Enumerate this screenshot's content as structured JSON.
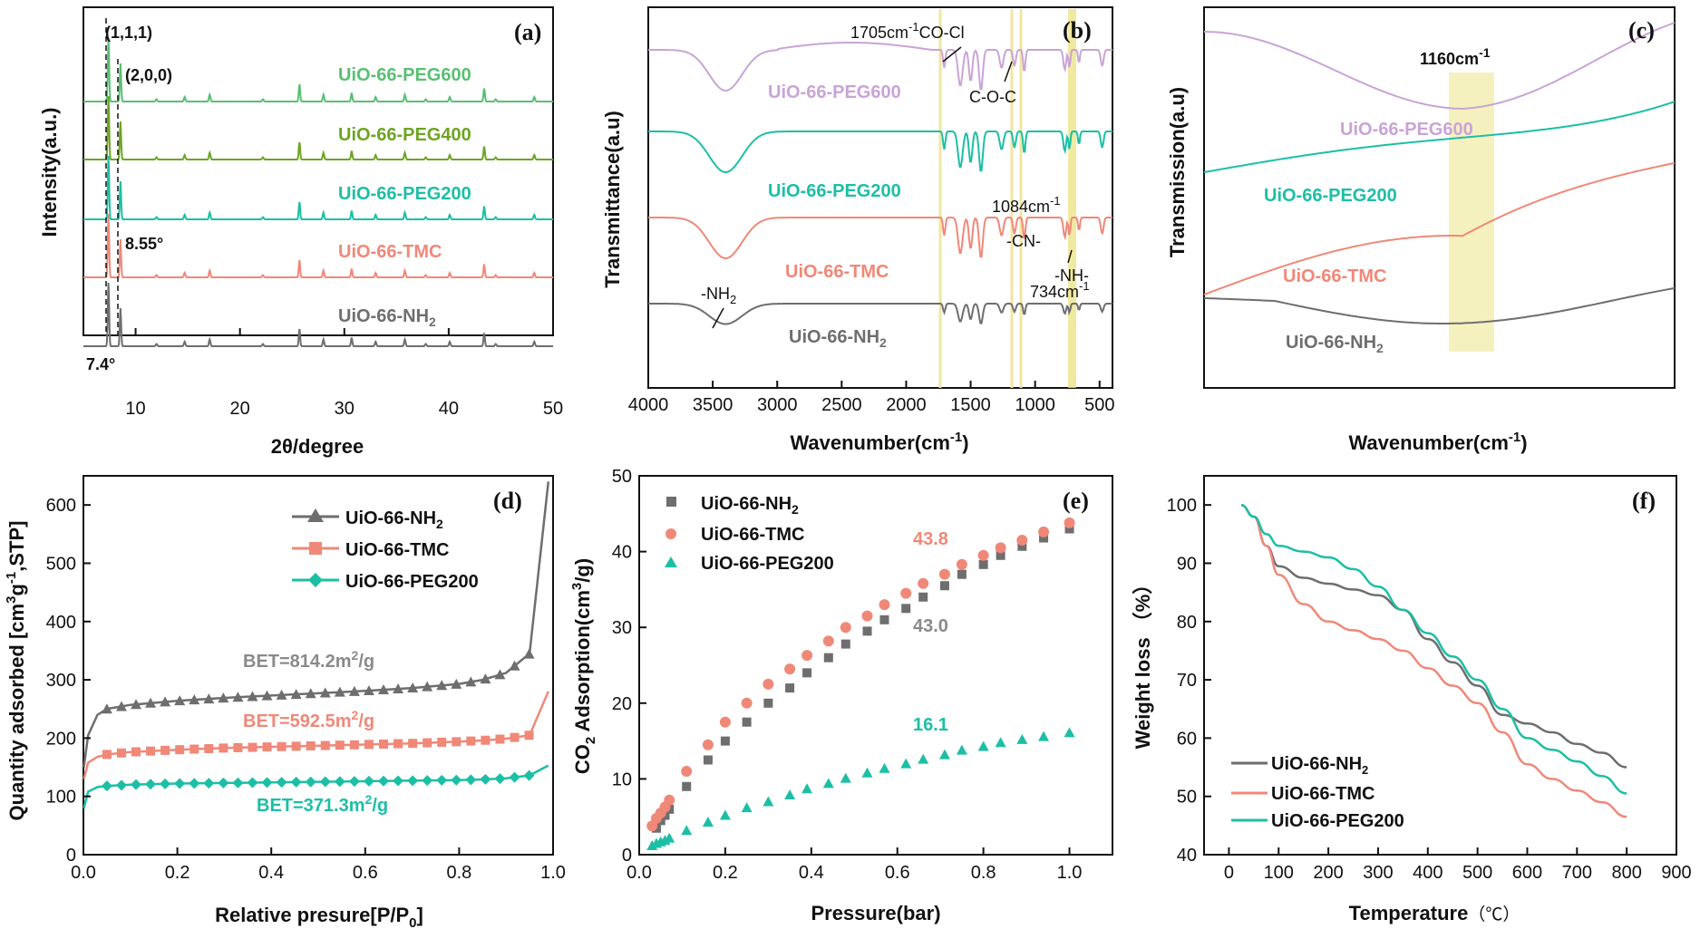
{
  "colors": {
    "gray": "#6e6e6e",
    "salmon": "#f08878",
    "teal": "#1cbfa5",
    "lavender": "#c9a4d6",
    "green_light": "#59bf73",
    "green_dark": "#6da522",
    "highlight": "#ece58a"
  },
  "panels": {
    "a": {
      "letter": "(a)",
      "xlabel": "2θ/degree",
      "ylabel": "Intensity(a.u.)",
      "xticks": [
        "10",
        "20",
        "30",
        "40",
        "50"
      ],
      "peaks_labels": {
        "p111": "(1,1,1)",
        "p200": "(2,0,0)",
        "angle1": "8.55°",
        "angle2": "7.4°"
      },
      "series": [
        "UiO-66-PEG600",
        "UiO-66-PEG400",
        "UiO-66-PEG200",
        "UiO-66-TMC",
        "UiO-66-NH",
        "2"
      ]
    },
    "b": {
      "letter": "(b)",
      "xlabel": "Wavenumber(cm",
      "xlabel_sup": "-1",
      "xlabel_end": ")",
      "ylabel": "Transmittance(a.u)",
      "xticks": [
        "4000",
        "3500",
        "3000",
        "2500",
        "2000",
        "1500",
        "1000",
        "500"
      ],
      "annotations": {
        "a1": "1705cm",
        "a1sup": "-1",
        "a1b": "CO-Cl",
        "a2": "C-O-C",
        "a3": "1084cm",
        "a3sup": "-1",
        "a4": "-CN-",
        "a5": "-NH-",
        "a6": "734cm",
        "a6sup": "-1",
        "a7": "-NH",
        "a7sub": "2"
      },
      "series": [
        "UiO-66-PEG600",
        "UiO-66-PEG200",
        "UiO-66-TMC",
        "UiO-66-NH",
        "2"
      ]
    },
    "c": {
      "letter": "(c)",
      "xlabel": "Wavenumber(cm",
      "xlabel_sup": "-1",
      "xlabel_end": ")",
      "ylabel": "Transmission(a.u)",
      "annotation": "1160cm",
      "annotation_sup": "-1",
      "series": [
        "UiO-66-PEG600",
        "UiO-66-PEG200",
        "UiO-66-TMC",
        "UiO-66-NH",
        "2"
      ]
    },
    "d": {
      "letter": "(d)",
      "xlabel": "Relative presure[P/P",
      "xlabel_sub": "0",
      "xlabel_end": "]",
      "ylabel": "Quantity adsorbed [cm",
      "ylabel_sup1": "3",
      "ylabel_mid": "g",
      "ylabel_sup2": "-1",
      "ylabel_end": ",STP]",
      "xticks": [
        "0.0",
        "0.2",
        "0.4",
        "0.6",
        "0.8",
        "1.0"
      ],
      "yticks": [
        "0",
        "100",
        "200",
        "300",
        "400",
        "500",
        "600"
      ],
      "legend": [
        "UiO-66-NH",
        "2",
        "UiO-66-TMC",
        "UiO-66-PEG200"
      ],
      "bet": [
        "BET=814.2m",
        "2",
        "/g",
        "BET=592.5m",
        "2",
        "/g",
        "BET=371.3m",
        "2",
        "/g"
      ]
    },
    "e": {
      "letter": "(e)",
      "xlabel": "Pressure(bar)",
      "ylabel_a": "CO",
      "ylabel_sub": "2",
      "ylabel_b": " Adsorption(cm",
      "ylabel_sup": "3",
      "ylabel_c": "/g)",
      "xticks": [
        "0.0",
        "0.2",
        "0.4",
        "0.6",
        "0.8",
        "1.0"
      ],
      "yticks": [
        "0",
        "10",
        "20",
        "30",
        "40",
        "50"
      ],
      "legend": [
        "UiO-66-NH",
        "2",
        "UiO-66-TMC",
        "UiO-66-PEG200"
      ],
      "values": [
        "43.8",
        "43.0",
        "16.1"
      ]
    },
    "f": {
      "letter": "(f)",
      "xlabel": "Temperature",
      "xlabel_unit": "（℃）",
      "ylabel": "Weight loss （%）",
      "xticks": [
        "0",
        "100",
        "200",
        "300",
        "400",
        "500",
        "600",
        "700",
        "800",
        "900"
      ],
      "yticks": [
        "40",
        "50",
        "60",
        "70",
        "80",
        "90",
        "100"
      ],
      "legend": [
        "UiO-66-NH",
        "2",
        "UiO-66-TMC",
        "UiO-66-PEG200"
      ]
    }
  },
  "chart_data": [
    {
      "panel": "a",
      "type": "line",
      "xlim": [
        5,
        50
      ],
      "series": [
        {
          "name": "UiO-66-PEG600",
          "peaks": [
            [
              7.4,
              1.0
            ],
            [
              8.55,
              0.6
            ],
            [
              25.7,
              0.2
            ],
            [
              30.7,
              0.1
            ],
            [
              43.4,
              0.1
            ]
          ]
        },
        {
          "name": "UiO-66-PEG400",
          "peaks": [
            [
              7.4,
              1.0
            ],
            [
              8.55,
              0.6
            ],
            [
              25.7,
              0.2
            ],
            [
              30.7,
              0.1
            ],
            [
              43.4,
              0.1
            ]
          ]
        },
        {
          "name": "UiO-66-PEG200",
          "peaks": [
            [
              7.4,
              1.0
            ],
            [
              8.55,
              0.6
            ],
            [
              25.7,
              0.2
            ],
            [
              30.7,
              0.1
            ],
            [
              43.4,
              0.1
            ]
          ]
        },
        {
          "name": "UiO-66-TMC",
          "peaks": [
            [
              7.4,
              1.0
            ],
            [
              8.55,
              0.6
            ],
            [
              25.7,
              0.2
            ],
            [
              30.7,
              0.1
            ],
            [
              43.4,
              0.1
            ]
          ]
        },
        {
          "name": "UiO-66-NH2",
          "peaks": [
            [
              7.4,
              1.0
            ],
            [
              8.55,
              0.6
            ],
            [
              25.7,
              0.2
            ],
            [
              30.7,
              0.1
            ],
            [
              43.4,
              0.1
            ]
          ]
        }
      ]
    },
    {
      "panel": "b",
      "type": "line",
      "xlim": [
        4000,
        400
      ]
    },
    {
      "panel": "c",
      "type": "line"
    },
    {
      "panel": "d",
      "type": "line",
      "xlim": [
        0,
        1
      ],
      "ylim": [
        0,
        650
      ],
      "series": [
        {
          "name": "UiO-66-NH2",
          "x": [
            0.001,
            0.01,
            0.03,
            0.05,
            0.1,
            0.2,
            0.3,
            0.4,
            0.5,
            0.6,
            0.7,
            0.8,
            0.85,
            0.9,
            0.95,
            0.99
          ],
          "y": [
            150,
            205,
            240,
            250,
            257,
            264,
            269,
            273,
            277,
            281,
            286,
            293,
            300,
            312,
            345,
            640
          ]
        },
        {
          "name": "UiO-66-TMC",
          "x": [
            0.001,
            0.01,
            0.03,
            0.05,
            0.1,
            0.2,
            0.3,
            0.4,
            0.5,
            0.6,
            0.7,
            0.8,
            0.85,
            0.9,
            0.95,
            0.99
          ],
          "y": [
            130,
            158,
            168,
            172,
            176,
            180,
            183,
            185,
            187,
            189,
            191,
            194,
            196,
            199,
            205,
            280
          ]
        },
        {
          "name": "UiO-66-PEG200",
          "x": [
            0.001,
            0.01,
            0.03,
            0.05,
            0.1,
            0.2,
            0.3,
            0.4,
            0.5,
            0.6,
            0.7,
            0.8,
            0.85,
            0.9,
            0.95,
            0.99
          ],
          "y": [
            80,
            108,
            116,
            118,
            120,
            122,
            123,
            124,
            125,
            126,
            127,
            128,
            129,
            131,
            136,
            153
          ]
        }
      ]
    },
    {
      "panel": "e",
      "type": "scatter",
      "xlim": [
        0,
        1.1
      ],
      "ylim": [
        0,
        50
      ],
      "series": [
        {
          "name": "UiO-66-NH2",
          "x": [
            0.04,
            0.05,
            0.06,
            0.07,
            0.11,
            0.16,
            0.2,
            0.25,
            0.3,
            0.35,
            0.39,
            0.44,
            0.48,
            0.53,
            0.57,
            0.62,
            0.66,
            0.71,
            0.75,
            0.8,
            0.84,
            0.89,
            0.94,
            1.0
          ],
          "y": [
            3.5,
            4.5,
            5.2,
            6.0,
            9.0,
            12.5,
            15.0,
            17.5,
            20.0,
            22.0,
            24.0,
            26.0,
            27.8,
            29.5,
            31.0,
            32.5,
            34.0,
            35.5,
            37.0,
            38.3,
            39.5,
            40.7,
            41.8,
            43.0
          ]
        },
        {
          "name": "UiO-66-TMC",
          "x": [
            0.03,
            0.04,
            0.05,
            0.06,
            0.07,
            0.11,
            0.16,
            0.2,
            0.25,
            0.3,
            0.35,
            0.39,
            0.44,
            0.48,
            0.53,
            0.57,
            0.62,
            0.66,
            0.71,
            0.75,
            0.8,
            0.84,
            0.89,
            0.94,
            1.0
          ],
          "y": [
            3.8,
            4.8,
            5.5,
            6.3,
            7.2,
            11.0,
            14.5,
            17.5,
            20.0,
            22.5,
            24.5,
            26.3,
            28.2,
            30.0,
            31.5,
            33.0,
            34.5,
            35.8,
            37.0,
            38.3,
            39.5,
            40.5,
            41.5,
            42.6,
            43.8
          ]
        },
        {
          "name": "UiO-66-PEG200",
          "x": [
            0.03,
            0.04,
            0.05,
            0.06,
            0.07,
            0.11,
            0.16,
            0.2,
            0.25,
            0.3,
            0.35,
            0.39,
            0.44,
            0.48,
            0.53,
            0.57,
            0.62,
            0.66,
            0.71,
            0.75,
            0.8,
            0.84,
            0.89,
            0.94,
            1.0
          ],
          "y": [
            1.2,
            1.5,
            1.7,
            1.9,
            2.2,
            3.2,
            4.3,
            5.2,
            6.2,
            7.0,
            7.9,
            8.7,
            9.4,
            10.1,
            10.8,
            11.4,
            12.0,
            12.6,
            13.2,
            13.8,
            14.3,
            14.8,
            15.2,
            15.6,
            16.1
          ]
        }
      ]
    },
    {
      "panel": "f",
      "type": "line",
      "xlim": [
        -50,
        900
      ],
      "ylim": [
        40,
        105
      ],
      "series": [
        {
          "name": "UiO-66-NH2",
          "x": [
            25,
            50,
            75,
            100,
            150,
            200,
            250,
            300,
            350,
            400,
            450,
            500,
            550,
            600,
            650,
            700,
            750,
            800
          ],
          "y": [
            100,
            98,
            93,
            89.5,
            87.5,
            86.5,
            85.5,
            84.5,
            82,
            77,
            73,
            69,
            64,
            62.5,
            61,
            59,
            57.5,
            55
          ]
        },
        {
          "name": "UiO-66-TMC",
          "x": [
            25,
            50,
            75,
            100,
            150,
            200,
            250,
            300,
            350,
            400,
            450,
            500,
            550,
            600,
            650,
            700,
            750,
            800
          ],
          "y": [
            100,
            98,
            93,
            88,
            83,
            80,
            78.5,
            77,
            75,
            72,
            69,
            66,
            61,
            55.5,
            53,
            51,
            49,
            46.5
          ]
        },
        {
          "name": "UiO-66-PEG200",
          "x": [
            25,
            50,
            75,
            100,
            150,
            200,
            250,
            300,
            350,
            400,
            450,
            500,
            550,
            600,
            650,
            700,
            750,
            800
          ],
          "y": [
            100,
            98,
            95,
            93,
            92,
            91,
            89,
            86,
            82,
            78,
            74,
            70,
            65,
            60,
            58,
            56,
            53.5,
            50.5
          ]
        }
      ]
    }
  ]
}
